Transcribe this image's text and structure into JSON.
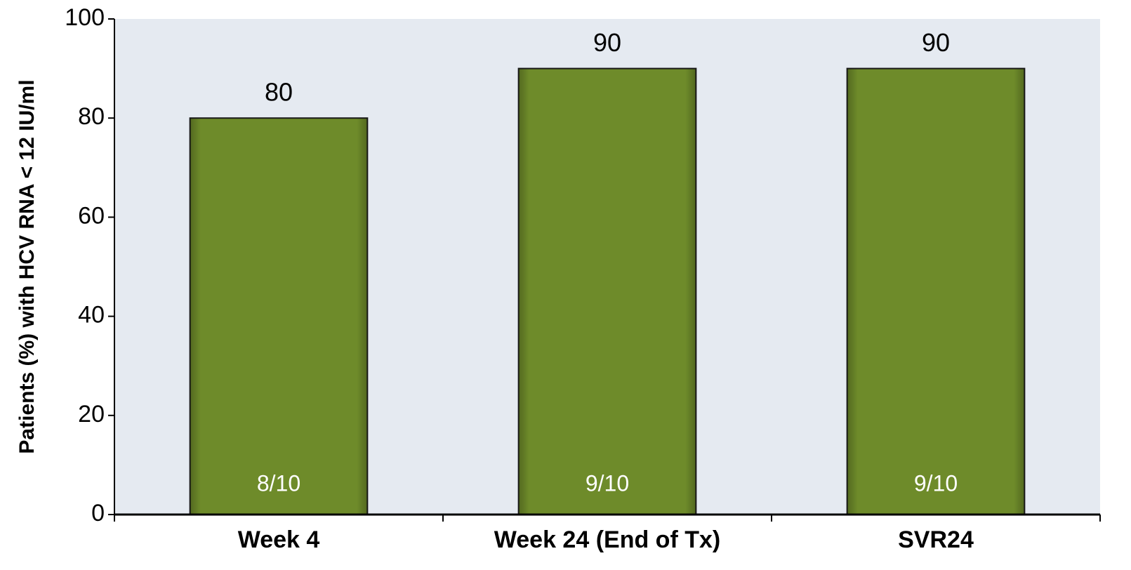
{
  "chart_data": {
    "type": "bar",
    "y_label": "Patients (%) with HCV RNA < 12 IU/ml",
    "categories": [
      "Week 4",
      "Week 24 (End of Tx)",
      "SVR24"
    ],
    "values": [
      80,
      90,
      90
    ],
    "bar_labels": [
      "8/10",
      "9/10",
      "9/10"
    ],
    "color": "#6e8b2a",
    "plot_background": "#e5eaf1",
    "ylim": [
      0,
      100
    ],
    "yticks": [
      0,
      20,
      40,
      60,
      80,
      100
    ],
    "grid": false
  }
}
